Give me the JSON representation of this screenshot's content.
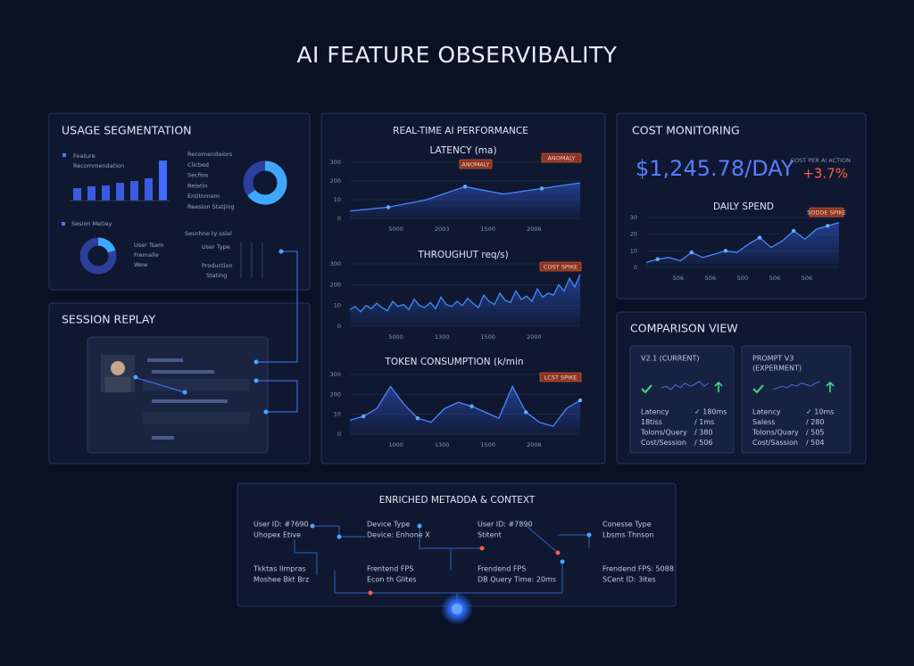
{
  "title": "AI FEATURE OBSERVIBALITY",
  "usage": {
    "title": "USAGE SEGMENTATION",
    "legend_top": [
      "Feature",
      "Recommendation"
    ],
    "bars": {
      "values": [
        14,
        16,
        17,
        20,
        22,
        25,
        45
      ],
      "ylim": [
        0,
        50
      ]
    },
    "segments": [
      "Recomendaiors",
      "Clicbed",
      "Secfios",
      "Relatin",
      "Entitnmem",
      "Reesion Statjing"
    ],
    "donut": {
      "values": [
        65,
        35
      ],
      "colors": [
        "#3ea8ff",
        "#2d3f9a"
      ]
    },
    "legend_bottom": "Sesion Metiey",
    "donut2": {
      "values": [
        20,
        80
      ],
      "colors": [
        "#3ea8ff",
        "#2d3f9a"
      ]
    },
    "donut2_labels": [
      "User Tsam",
      "Fremalle",
      "Wew"
    ],
    "tree": [
      "Sesnhne ty sslel",
      "User Type",
      "Production",
      "Stating"
    ]
  },
  "session": {
    "title": "SESSION REPLAY"
  },
  "performance": {
    "title": "REAL-TIME AI PERFORMANCE",
    "charts": [
      {
        "title": "LATENCY (ma)",
        "badges": [
          "ANOMALY",
          "ANOMALY"
        ],
        "yticks": [
          "300",
          "200",
          "10",
          "0"
        ],
        "xticks": [
          "5000",
          "2003",
          "1500",
          "2006"
        ],
        "ylim": [
          0,
          300
        ],
        "values": [
          40,
          60,
          100,
          170,
          130,
          160,
          190
        ]
      },
      {
        "title": "THROUGHUT req/s)",
        "badges": [
          "COST SPIKE"
        ],
        "yticks": [
          "300",
          "200",
          "10",
          "0"
        ],
        "xticks": [
          "5000",
          "1300",
          "1500",
          "2000"
        ],
        "ylim": [
          0,
          300
        ],
        "values": [
          80,
          95,
          70,
          100,
          85,
          110,
          90,
          75,
          120,
          95,
          105,
          80,
          130,
          100,
          90,
          115,
          85,
          140,
          105,
          95,
          120,
          100,
          135,
          110,
          90,
          150,
          120,
          105,
          160,
          125,
          115,
          170,
          130,
          145,
          120,
          180,
          140,
          160,
          150,
          200,
          170,
          230,
          190,
          250
        ]
      },
      {
        "title": "TOKEN CONSUMPTION (k/min",
        "badges": [
          "LCST SPIKE"
        ],
        "yticks": [
          "300",
          "200",
          "10",
          "0"
        ],
        "xticks": [
          "1000",
          "1300",
          "1500",
          "2006"
        ],
        "ylim": [
          0,
          300
        ],
        "values": [
          70,
          90,
          130,
          240,
          150,
          80,
          60,
          130,
          160,
          140,
          110,
          80,
          240,
          110,
          60,
          40,
          130,
          170
        ]
      }
    ]
  },
  "cost": {
    "title": "COST MONITORING",
    "amount": "$1,245.78/DAY",
    "per_action": "COST PER AI ACTION",
    "change": "+3.7%",
    "chart": {
      "title": "DAILY SPEND",
      "badges": [
        "SODDE SPIKE"
      ],
      "yticks": [
        "30",
        "20",
        "10",
        "0"
      ],
      "xticks": [
        "506",
        "506",
        "500",
        "506",
        "506"
      ],
      "ylim": [
        0,
        30
      ],
      "values": [
        3,
        5,
        6,
        4,
        9,
        6,
        8,
        10,
        9,
        14,
        18,
        12,
        16,
        22,
        17,
        23,
        25,
        27
      ]
    }
  },
  "comparison": {
    "title": "COMPARISON VIEW",
    "cards": [
      {
        "title": [
          "V2.1 (CURRENT)"
        ],
        "spark": {
          "values": [
            5,
            6,
            4,
            7,
            5,
            8,
            6,
            7,
            9,
            6,
            8
          ],
          "ylim": [
            0,
            10
          ]
        },
        "rows": [
          [
            "Latency",
            "✓ 180ms"
          ],
          [
            "18tiss",
            "/ 1ms"
          ],
          [
            "Tolons/Query",
            "/ 380"
          ],
          [
            "Cost/Session",
            "/ 506"
          ]
        ]
      },
      {
        "title": [
          "PROMPT V3",
          "(EXPERMENT)"
        ],
        "spark": {
          "values": [
            4,
            5,
            6,
            5,
            7,
            6,
            8,
            7,
            6,
            8,
            9
          ],
          "ylim": [
            0,
            10
          ]
        },
        "rows": [
          [
            "Latency",
            "✓ 10ms"
          ],
          [
            "Saless",
            "/ 280"
          ],
          [
            "Tolons/Quary",
            "/ 505"
          ],
          [
            "Cost/Sassion",
            "/ 504"
          ]
        ]
      }
    ]
  },
  "metadata": {
    "title": "ENRICHED METADDA & CONTEXT",
    "columns": [
      [
        "User ID: #7690",
        "Uhopex Etive",
        "Tkktas Ilmpras",
        "Moshee Bkt Brz"
      ],
      [
        "Device Type",
        "Device: Enhone X",
        "Frentend FPS",
        "Econ th Glites"
      ],
      [
        "User ID: #7890",
        "Stitent",
        "Frendend FPS",
        "DB Query Time: 20ms"
      ],
      [
        "Conesse Type",
        "Lbsms Thnson",
        "Frendend FPS: 5088",
        "SCent ID: 3ites"
      ]
    ]
  }
}
